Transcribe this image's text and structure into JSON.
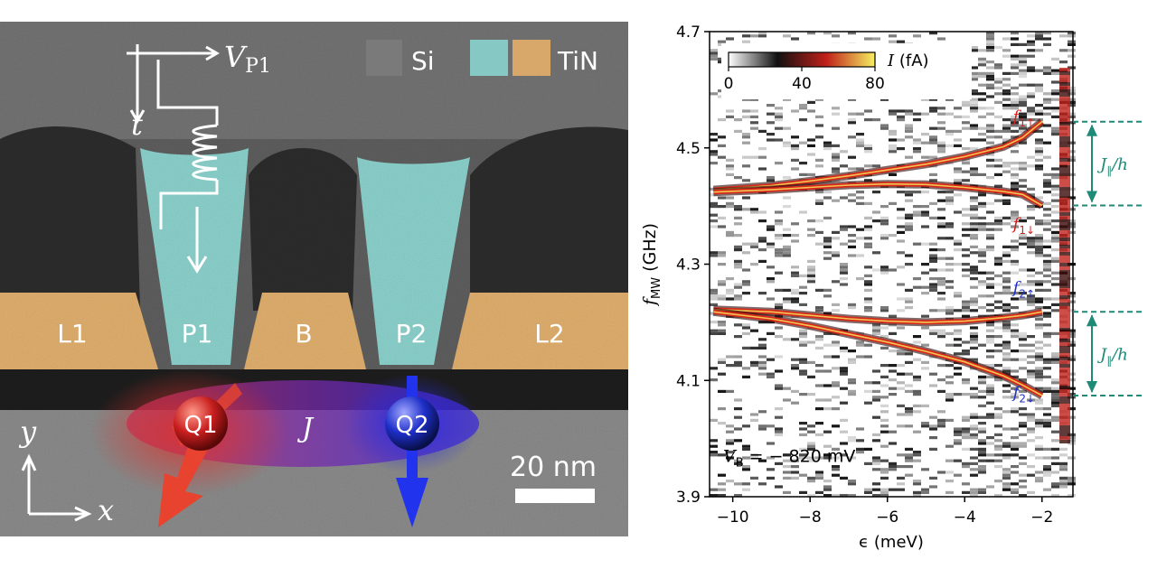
{
  "micrograph": {
    "legend": {
      "si": "Si",
      "tin": "TiN"
    },
    "gate_labels": [
      "L1",
      "P1",
      "B",
      "P2",
      "L2"
    ],
    "qubits": {
      "q1": "Q1",
      "q2": "Q2"
    },
    "coupling": "J",
    "pulse": {
      "voltage_label": "V",
      "voltage_sub": "P1",
      "time_label": "t"
    },
    "axes": {
      "y": "y",
      "x": "x"
    },
    "scale_bar": "20 nm",
    "colors": {
      "si": "#7a7a7a",
      "tin_plunger": "#86c9c4",
      "tin_gate": "#d7a869",
      "q1": "#d6322a",
      "q2": "#2233cc"
    }
  },
  "chart_data": {
    "type": "heatmap",
    "xlabel": "ϵ (meV)",
    "ylabel_main": "f",
    "ylabel_sub": "MW",
    "ylabel_unit": "(GHz)",
    "xlim": [
      -10.6,
      -1.2
    ],
    "ylim": [
      3.9,
      4.7
    ],
    "x_ticks": [
      -10,
      -8,
      -6,
      -4,
      -2
    ],
    "x_tick_labels": [
      "−10",
      "−8",
      "−6",
      "−4",
      "−2"
    ],
    "y_ticks": [
      3.9,
      4.1,
      4.3,
      4.5,
      4.7
    ],
    "y_tick_labels": [
      "3.9",
      "4.1",
      "4.3",
      "4.5",
      "4.7"
    ],
    "colorbar": {
      "label": "I (fA)",
      "ticks": [
        0,
        40,
        80
      ],
      "tick_labels": [
        "0",
        "40",
        "80"
      ],
      "cmap": [
        "#ffffff",
        "#111111",
        "#c0201a",
        "#f6ef60"
      ]
    },
    "annotation": "V_B = − 820 mV",
    "annotation_parts": {
      "main": "V",
      "sub": "B",
      "rest": " = − 820 mV"
    },
    "coupling_label": "J_∥/h",
    "coupling_markers": [
      {
        "top": 4.545,
        "bottom": 4.401
      },
      {
        "top": 4.218,
        "bottom": 4.074
      }
    ],
    "series": [
      {
        "name": "f1↑",
        "label_main": "f",
        "label_sub": "1↑",
        "color": "#d62020",
        "x": [
          -10.5,
          -9,
          -8,
          -7,
          -6,
          -5,
          -4,
          -3,
          -2.5,
          -2
        ],
        "y": [
          4.428,
          4.435,
          4.443,
          4.452,
          4.462,
          4.472,
          4.485,
          4.502,
          4.518,
          4.545
        ]
      },
      {
        "name": "f1↓",
        "label_main": "f",
        "label_sub": "1↓",
        "color": "#d62020",
        "x": [
          -10.5,
          -9,
          -8,
          -7,
          -6,
          -5,
          -4,
          -3,
          -2.5,
          -2
        ],
        "y": [
          4.424,
          4.428,
          4.432,
          4.436,
          4.438,
          4.437,
          4.432,
          4.425,
          4.42,
          4.401
        ]
      },
      {
        "name": "f2↑",
        "label_main": "f",
        "label_sub": "2↑",
        "color": "#2030cc",
        "x": [
          -10.5,
          -9,
          -8,
          -7,
          -6,
          -5,
          -4,
          -3,
          -2.5,
          -2
        ],
        "y": [
          4.222,
          4.218,
          4.212,
          4.206,
          4.202,
          4.2,
          4.202,
          4.208,
          4.212,
          4.218
        ]
      },
      {
        "name": "f2↓",
        "label_main": "f",
        "label_sub": "2↓",
        "color": "#2030cc",
        "x": [
          -10.5,
          -9,
          -8,
          -7,
          -6,
          -5,
          -4,
          -3,
          -2.5,
          -2
        ],
        "y": [
          4.218,
          4.206,
          4.194,
          4.18,
          4.166,
          4.15,
          4.132,
          4.108,
          4.092,
          4.074
        ]
      }
    ]
  }
}
